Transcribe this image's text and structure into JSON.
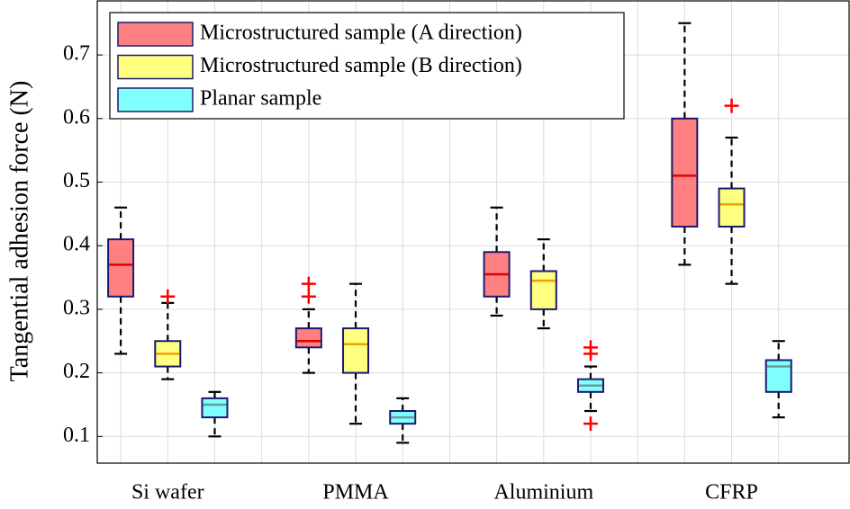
{
  "chart_data": {
    "type": "box",
    "y_label": "Tangential adhesion force (N)",
    "categories": [
      "Si wafer",
      "PMMA",
      "Aluminium",
      "CFRP"
    ],
    "ylim": [
      0.058,
      0.785
    ],
    "yticks": [
      0.1,
      0.2,
      0.3,
      0.4,
      0.5,
      0.6,
      0.7
    ],
    "grid": true,
    "legend": "upper left",
    "series": [
      {
        "name": "Microstructured sample (A direction)",
        "color": "#ff8080",
        "median_color": "#e00000",
        "whisker_low": [
          0.23,
          0.2,
          0.29,
          0.37
        ],
        "q1": [
          0.32,
          0.24,
          0.32,
          0.43
        ],
        "median": [
          0.37,
          0.25,
          0.355,
          0.51
        ],
        "q3": [
          0.41,
          0.27,
          0.39,
          0.6
        ],
        "whisker_high": [
          0.46,
          0.3,
          0.46,
          0.75
        ],
        "outliers": [
          [],
          [
            0.32,
            0.34
          ],
          [],
          []
        ]
      },
      {
        "name": "Microstructured sample (B direction)",
        "color": "#ffff80",
        "median_color": "#f0a000",
        "whisker_low": [
          0.19,
          0.12,
          0.27,
          0.34
        ],
        "q1": [
          0.21,
          0.2,
          0.3,
          0.43
        ],
        "median": [
          0.23,
          0.245,
          0.345,
          0.465
        ],
        "q3": [
          0.25,
          0.27,
          0.36,
          0.49
        ],
        "whisker_high": [
          0.31,
          0.34,
          0.41,
          0.57
        ],
        "outliers": [
          [
            0.32
          ],
          [],
          [],
          [
            0.62
          ]
        ]
      },
      {
        "name": "Planar sample",
        "color": "#80ffff",
        "median_color": "#6a9a9a",
        "whisker_low": [
          0.1,
          0.09,
          0.14,
          0.13
        ],
        "q1": [
          0.13,
          0.12,
          0.17,
          0.17
        ],
        "median": [
          0.15,
          0.13,
          0.18,
          0.21
        ],
        "q3": [
          0.16,
          0.14,
          0.19,
          0.22
        ],
        "whisker_high": [
          0.17,
          0.16,
          0.21,
          0.25
        ],
        "outliers": [
          [],
          [],
          [
            0.12,
            0.23,
            0.24
          ],
          []
        ]
      }
    ]
  }
}
